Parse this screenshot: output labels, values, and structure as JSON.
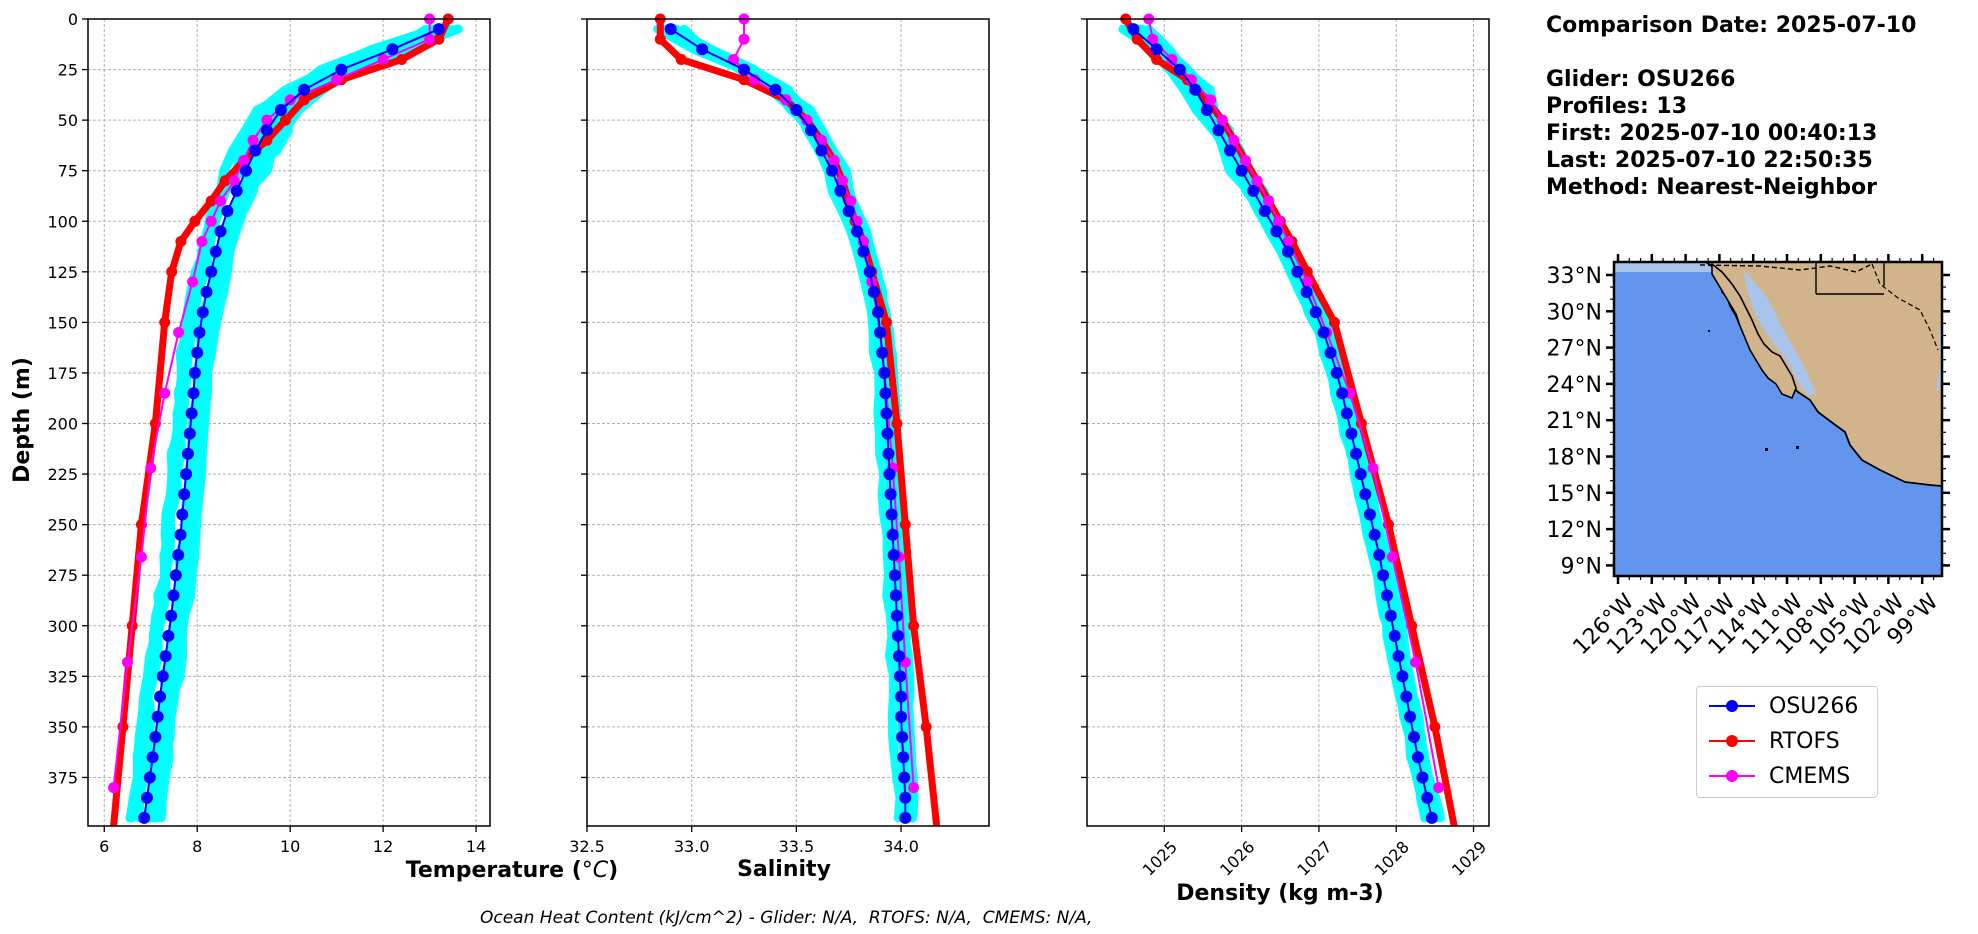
{
  "chart_data": [
    {
      "type": "line",
      "xlabel": "Temperature (°C)",
      "ylabel": "Depth (m)",
      "xlim": [
        5.65,
        14.3
      ],
      "ylim": [
        399,
        0
      ],
      "xticks": [
        6,
        8,
        10,
        12,
        14
      ],
      "yticks": [
        0,
        25,
        50,
        75,
        100,
        125,
        150,
        175,
        200,
        225,
        250,
        275,
        300,
        325,
        350,
        375
      ],
      "grid": true,
      "series": [
        {
          "name": "OSU266",
          "color": "#0000ff",
          "depths": [
            5,
            15,
            25,
            35,
            45,
            55,
            65,
            75,
            85,
            95,
            105,
            115,
            125,
            135,
            145,
            155,
            165,
            175,
            185,
            195,
            205,
            215,
            225,
            235,
            245,
            255,
            265,
            275,
            285,
            295,
            305,
            315,
            325,
            335,
            345,
            355,
            365,
            375,
            385,
            395
          ],
          "values": [
            13.2,
            12.2,
            11.1,
            10.3,
            9.8,
            9.5,
            9.25,
            9.05,
            8.85,
            8.65,
            8.5,
            8.4,
            8.3,
            8.2,
            8.12,
            8.05,
            8.0,
            7.95,
            7.92,
            7.88,
            7.84,
            7.8,
            7.76,
            7.72,
            7.68,
            7.64,
            7.59,
            7.54,
            7.49,
            7.44,
            7.38,
            7.32,
            7.26,
            7.2,
            7.15,
            7.1,
            7.04,
            6.98,
            6.92,
            6.86
          ]
        },
        {
          "name": "RTOFS",
          "color": "#ff0000",
          "depths": [
            0,
            10,
            20,
            30,
            40,
            50,
            60,
            70,
            80,
            90,
            100,
            110,
            125,
            150,
            200,
            250,
            300,
            350,
            399
          ],
          "values": [
            13.4,
            13.2,
            12.4,
            11.1,
            10.3,
            9.9,
            9.5,
            9.0,
            8.6,
            8.3,
            7.95,
            7.65,
            7.45,
            7.3,
            7.1,
            6.8,
            6.6,
            6.4,
            6.2
          ]
        },
        {
          "name": "CMEMS",
          "color": "#ff00ff",
          "depths": [
            0,
            10,
            20,
            30,
            40,
            50,
            60,
            70,
            80,
            90,
            100,
            110,
            130,
            155,
            185,
            222,
            266,
            318,
            380
          ],
          "values": [
            13.0,
            13.0,
            12.0,
            11.0,
            10.0,
            9.5,
            9.2,
            9.0,
            8.8,
            8.5,
            8.3,
            8.1,
            7.9,
            7.6,
            7.3,
            7.0,
            6.8,
            6.5,
            6.2
          ]
        }
      ]
    },
    {
      "type": "line",
      "xlabel": "Salinity",
      "ylabel": "",
      "xlim": [
        32.5,
        34.42
      ],
      "ylim": [
        399,
        0
      ],
      "xticks": [
        32.5,
        33.0,
        33.5,
        34.0
      ],
      "grid": true,
      "series": [
        {
          "name": "OSU266",
          "color": "#0000ff",
          "depths": [
            5,
            15,
            25,
            35,
            45,
            55,
            65,
            75,
            85,
            95,
            105,
            115,
            125,
            135,
            145,
            155,
            165,
            175,
            185,
            195,
            205,
            215,
            225,
            235,
            245,
            255,
            265,
            275,
            285,
            295,
            305,
            315,
            325,
            335,
            345,
            355,
            365,
            375,
            385,
            395
          ],
          "values": [
            32.9,
            33.05,
            33.25,
            33.4,
            33.5,
            33.57,
            33.62,
            33.67,
            33.71,
            33.75,
            33.79,
            33.82,
            33.85,
            33.87,
            33.89,
            33.9,
            33.91,
            33.92,
            33.925,
            33.93,
            33.935,
            33.94,
            33.945,
            33.95,
            33.955,
            33.96,
            33.965,
            33.97,
            33.975,
            33.98,
            33.985,
            33.99,
            33.995,
            34.0,
            34.0,
            34.005,
            34.01,
            34.015,
            34.02,
            34.02
          ]
        },
        {
          "name": "RTOFS",
          "color": "#ff0000",
          "depths": [
            0,
            10,
            20,
            30,
            40,
            50,
            60,
            70,
            80,
            90,
            100,
            110,
            125,
            150,
            200,
            250,
            300,
            350,
            399
          ],
          "values": [
            32.85,
            32.85,
            32.95,
            33.25,
            33.45,
            33.55,
            33.62,
            33.68,
            33.72,
            33.75,
            33.78,
            33.82,
            33.86,
            33.93,
            33.98,
            34.02,
            34.06,
            34.12,
            34.17
          ]
        },
        {
          "name": "CMEMS",
          "color": "#ff00ff",
          "depths": [
            0,
            10,
            20,
            30,
            40,
            50,
            60,
            70,
            80,
            90,
            100,
            110,
            130,
            155,
            185,
            222,
            266,
            318,
            380
          ],
          "values": [
            33.25,
            33.25,
            33.2,
            33.3,
            33.45,
            33.55,
            33.62,
            33.68,
            33.72,
            33.76,
            33.79,
            33.82,
            33.86,
            33.9,
            33.93,
            33.96,
            33.99,
            34.02,
            34.06
          ]
        }
      ]
    },
    {
      "type": "line",
      "xlabel": "Density (kg m-3)",
      "ylabel": "",
      "xlim": [
        1024.0,
        1029.2
      ],
      "ylim": [
        399,
        0
      ],
      "xticks": [
        1025,
        1026,
        1027,
        1028,
        1029
      ],
      "grid": true,
      "series": [
        {
          "name": "OSU266",
          "color": "#0000ff",
          "depths": [
            5,
            15,
            25,
            35,
            45,
            55,
            65,
            75,
            85,
            95,
            105,
            115,
            125,
            135,
            145,
            155,
            165,
            175,
            185,
            195,
            205,
            215,
            225,
            235,
            245,
            255,
            265,
            275,
            285,
            295,
            305,
            315,
            325,
            335,
            345,
            355,
            365,
            375,
            385,
            395
          ],
          "values": [
            1024.6,
            1024.9,
            1025.2,
            1025.4,
            1025.55,
            1025.7,
            1025.85,
            1026.0,
            1026.15,
            1026.3,
            1026.45,
            1026.6,
            1026.72,
            1026.84,
            1026.96,
            1027.06,
            1027.15,
            1027.23,
            1027.3,
            1027.36,
            1027.42,
            1027.48,
            1027.54,
            1027.6,
            1027.66,
            1027.72,
            1027.78,
            1027.83,
            1027.88,
            1027.93,
            1027.98,
            1028.03,
            1028.08,
            1028.13,
            1028.18,
            1028.23,
            1028.28,
            1028.34,
            1028.4,
            1028.46
          ]
        },
        {
          "name": "RTOFS",
          "color": "#ff0000",
          "depths": [
            0,
            10,
            20,
            30,
            40,
            50,
            60,
            70,
            80,
            90,
            100,
            110,
            125,
            150,
            200,
            250,
            300,
            350,
            399
          ],
          "values": [
            1024.5,
            1024.65,
            1024.9,
            1025.3,
            1025.55,
            1025.75,
            1025.9,
            1026.05,
            1026.2,
            1026.35,
            1026.5,
            1026.65,
            1026.85,
            1027.2,
            1027.55,
            1027.9,
            1028.2,
            1028.5,
            1028.75
          ]
        },
        {
          "name": "CMEMS",
          "color": "#ff00ff",
          "depths": [
            0,
            10,
            20,
            30,
            40,
            50,
            60,
            70,
            80,
            90,
            100,
            110,
            130,
            155,
            185,
            222,
            266,
            318,
            380
          ],
          "values": [
            1024.8,
            1024.85,
            1025.1,
            1025.35,
            1025.6,
            1025.75,
            1025.9,
            1026.05,
            1026.2,
            1026.35,
            1026.48,
            1026.6,
            1026.85,
            1027.1,
            1027.4,
            1027.7,
            1027.95,
            1028.25,
            1028.55
          ]
        }
      ]
    }
  ],
  "cyan_envelope_color": "#00ffff",
  "info": {
    "comparison_date": "Comparison Date: 2025-07-10",
    "glider": "Glider: OSU266",
    "profiles": "Profiles: 13",
    "first": "First: 2025-07-10 00:40:13",
    "last": "Last: 2025-07-10 22:50:35",
    "method": "Method: Nearest-Neighbor"
  },
  "map": {
    "lat_labels": [
      "33°N",
      "30°N",
      "27°N",
      "24°N",
      "21°N",
      "18°N",
      "15°N",
      "12°N",
      "9°N"
    ],
    "lon_labels": [
      "126°W",
      "123°W",
      "120°W",
      "117°W",
      "114°W",
      "111°W",
      "108°W",
      "105°W",
      "102°W",
      "99°W"
    ],
    "ocean_color": "#6495ed",
    "land_color": "#d2b48c"
  },
  "legend": [
    {
      "label": "OSU266",
      "color": "#0000ff"
    },
    {
      "label": "RTOFS",
      "color": "#ff0000"
    },
    {
      "label": "CMEMS",
      "color": "#ff00ff"
    }
  ],
  "footer": "Ocean Heat Content (kJ/cm^2) - Glider: N/A,  RTOFS: N/A,  CMEMS: N/A,"
}
